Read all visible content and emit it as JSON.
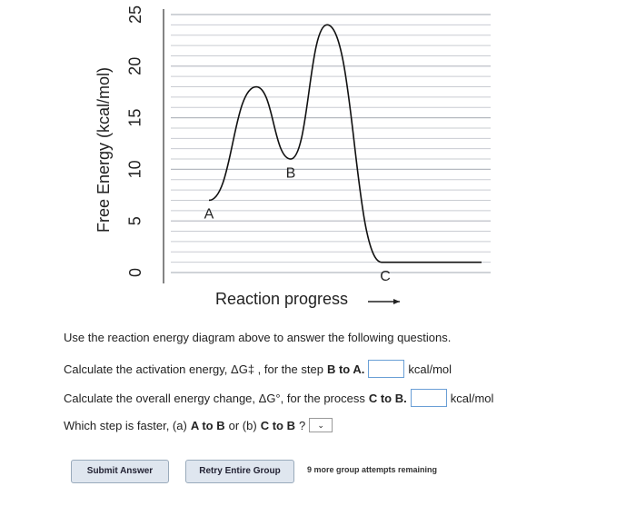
{
  "chart_data": {
    "type": "line",
    "ylabel": "Free Energy (kcal/mol)",
    "xlabel": "Reaction progress",
    "categories": [
      "A",
      null,
      "B",
      null,
      "C"
    ],
    "values": [
      7,
      18,
      11,
      24,
      1
    ],
    "color": "#111111",
    "ylim": [
      0,
      25
    ],
    "yticks": [
      0,
      5,
      10,
      15,
      20,
      25
    ],
    "grid": true
  },
  "instructions": "Use the reaction energy diagram above to answer the following questions.",
  "questions": [
    {
      "text": "Calculate the activation energy, ΔG‡ , for the step",
      "bold": "B to A.",
      "unit": "kcal/mol"
    },
    {
      "text": "Calculate the overall energy change, ΔG°, for the process",
      "bold": "C to B.",
      "unit": "kcal/mol"
    },
    {
      "text": "Which step is faster, (a)",
      "bold": "A to B",
      "middle": "or (b)",
      "bold2": "C to B",
      "end": "?"
    }
  ],
  "buttons": {
    "submit": "Submit Answer",
    "retry": "Retry Entire Group",
    "attempts": "9 more group attempts remaining"
  }
}
